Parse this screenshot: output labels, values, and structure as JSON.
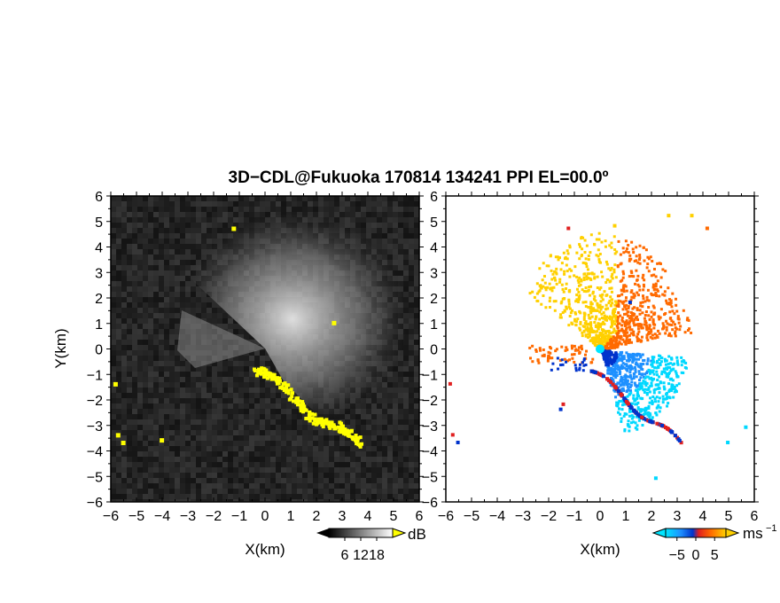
{
  "chart_data": {
    "title": "3D−CDL@Fukuoka 170814 134241 PPI EL=00.0º",
    "panels": [
      {
        "type": "heatmap",
        "field": "intensity",
        "xlabel": "X(km)",
        "ylabel": "Y(km)",
        "xlim": [
          -6,
          6
        ],
        "ylim": [
          -6,
          6
        ],
        "x_ticks": [
          "−6",
          "−5",
          "−4",
          "−3",
          "−2",
          "−1",
          "0",
          "1",
          "2",
          "3",
          "4",
          "5",
          "6"
        ],
        "y_ticks": [
          "6",
          "5",
          "4",
          "3",
          "2",
          "1",
          "0",
          "−1",
          "−2",
          "−3",
          "−4",
          "−5",
          "−6"
        ],
        "colorbar": {
          "unit": "dB",
          "ticks": [
            "6",
            "12",
            "18"
          ],
          "range": [
            0,
            24
          ]
        },
        "colors": {
          "background": "#222222",
          "echo": "#c8c8c8",
          "clutter": "#ffff00"
        }
      },
      {
        "type": "heatmap",
        "field": "doppler velocity",
        "xlabel": "X(km)",
        "ylabel": "",
        "xlim": [
          -6,
          6
        ],
        "ylim": [
          -6,
          6
        ],
        "x_ticks": [
          "−6",
          "−5",
          "−4",
          "−3",
          "−2",
          "−1",
          "0",
          "1",
          "2",
          "3",
          "4",
          "5",
          "6"
        ],
        "y_ticks": [
          "6",
          "5",
          "4",
          "3",
          "2",
          "1",
          "0",
          "−1",
          "−2",
          "−3",
          "−4",
          "−5",
          "−6"
        ],
        "colorbar": {
          "unit": "ms",
          "unit_sup": "−1",
          "ticks": [
            "−5",
            "0",
            "5"
          ],
          "range": [
            -8,
            8
          ]
        },
        "colors": {
          "negative": "#1e90ff",
          "positive": "#ff6a00",
          "high": "#ffd000",
          "edge": "#e02020",
          "deep": "#0033cc"
        }
      }
    ]
  }
}
